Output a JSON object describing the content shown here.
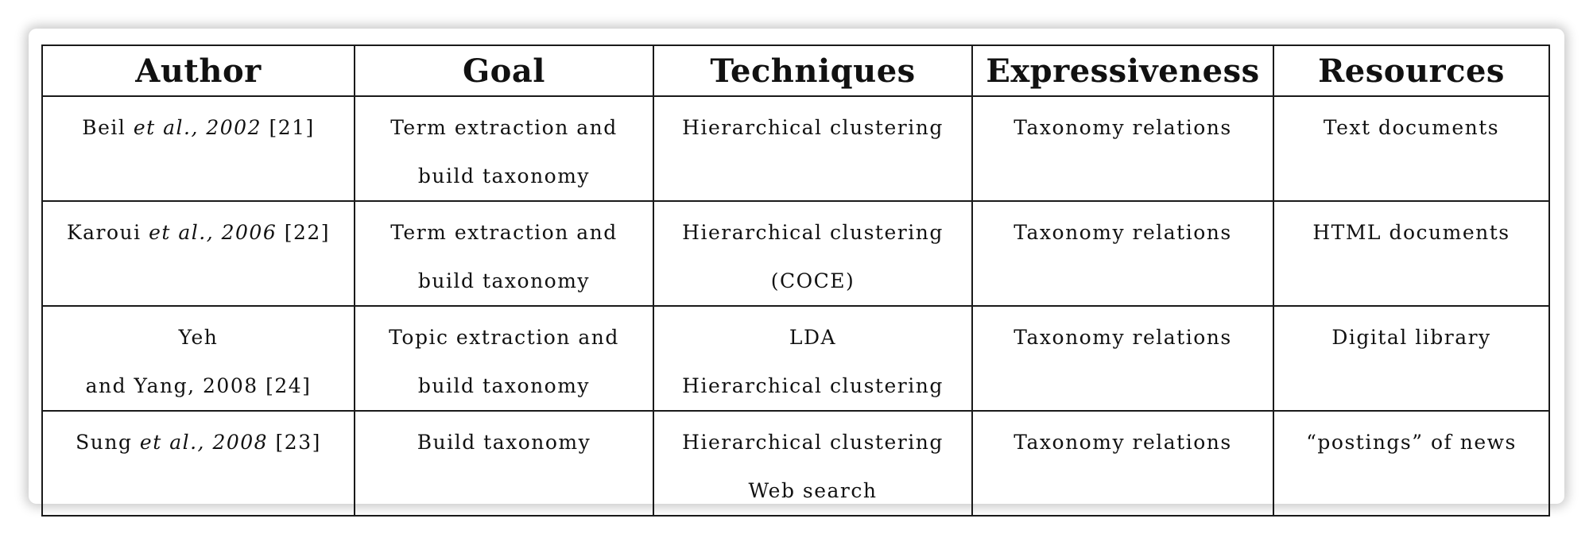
{
  "table": {
    "headers": [
      "Author",
      "Goal",
      "Techniques",
      "Expressiveness",
      "Resources"
    ],
    "rows": [
      {
        "author": {
          "name": "Beil",
          "etal": "et al., 2002",
          "ref": "[21]"
        },
        "goal": [
          "Term extraction and",
          "build taxonomy"
        ],
        "techniques": [
          "Hierarchical clustering"
        ],
        "expressiveness": "Taxonomy relations",
        "resources": "Text documents"
      },
      {
        "author": {
          "name": "Karoui",
          "etal": "et al., 2006",
          "ref": "[22]"
        },
        "goal": [
          "Term extraction and",
          "build taxonomy"
        ],
        "techniques": [
          "Hierarchical clustering",
          "(COCE)"
        ],
        "expressiveness": "Taxonomy relations",
        "resources": "HTML documents"
      },
      {
        "author": {
          "line1": "Yeh",
          "line2": "and Yang, 2008 [24]"
        },
        "goal": [
          "Topic extraction and",
          "build taxonomy"
        ],
        "techniques": [
          "LDA",
          "Hierarchical clustering"
        ],
        "expressiveness": "Taxonomy relations",
        "resources": "Digital library"
      },
      {
        "author": {
          "name": "Sung",
          "etal": "et al., 2008",
          "ref": "[23]"
        },
        "goal": [
          "Build taxonomy"
        ],
        "techniques": [
          "Hierarchical clustering",
          "Web search"
        ],
        "expressiveness": "Taxonomy relations",
        "resources": "“postings” of news"
      }
    ]
  }
}
